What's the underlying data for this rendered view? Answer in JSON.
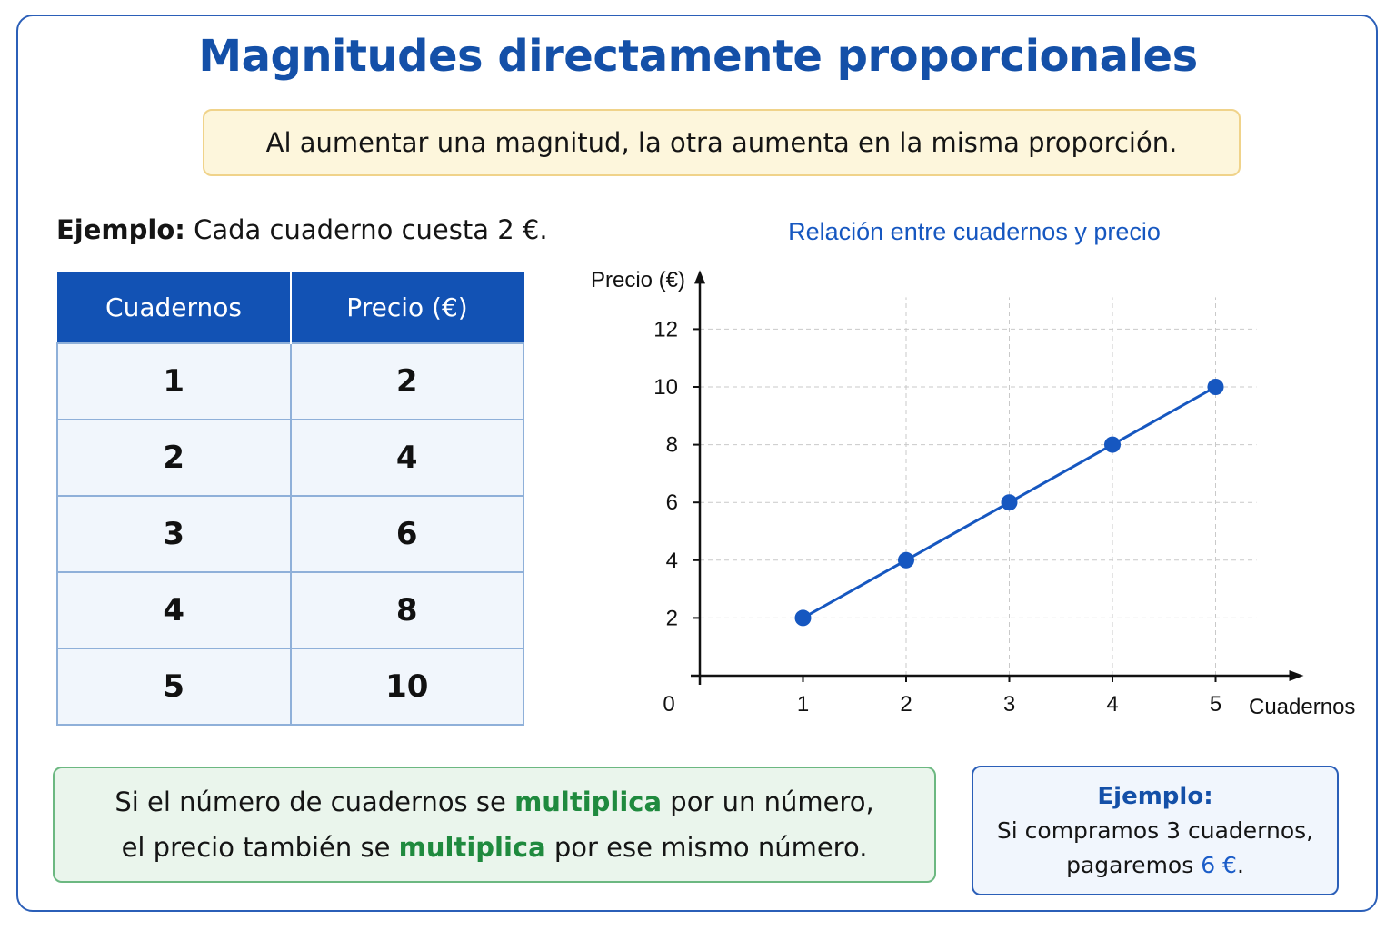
{
  "title": "Magnitudes directamente proporcionales",
  "banner": "Al aumentar una magnitud, la otra aumenta en la misma proporción.",
  "example": {
    "label": "Ejemplo:",
    "text": " Cada cuaderno cuesta 2 €."
  },
  "table": {
    "headers": [
      "Cuadernos",
      "Precio (€)"
    ],
    "rows": [
      [
        "1",
        "2"
      ],
      [
        "2",
        "4"
      ],
      [
        "3",
        "6"
      ],
      [
        "4",
        "8"
      ],
      [
        "5",
        "10"
      ]
    ]
  },
  "chart_data": {
    "type": "line",
    "title": "Relación entre cuadernos y precio",
    "xlabel": "Cuadernos",
    "ylabel": "Precio (€)",
    "x": [
      1,
      2,
      3,
      4,
      5
    ],
    "y": [
      2,
      4,
      6,
      8,
      10
    ],
    "xlim": [
      0,
      5
    ],
    "ylim": [
      0,
      12
    ],
    "xticks": [
      1,
      2,
      3,
      4,
      5
    ],
    "yticks": [
      2,
      4,
      6,
      8,
      10,
      12
    ],
    "origin_label": "0",
    "grid": true,
    "color": "#1657c0"
  },
  "rule_box": {
    "line1_a": "Si el número de cuadernos se ",
    "line1_b": "multiplica",
    "line1_c": " por un número,",
    "line2_a": "el precio también se ",
    "line2_b": "multiplica",
    "line2_c": " por ese mismo número."
  },
  "example_box": {
    "head": "Ejemplo:",
    "line1": "Si compramos 3 cuadernos,",
    "line2_a": "pagaremos ",
    "line2_b": "6 €",
    "line2_c": "."
  }
}
